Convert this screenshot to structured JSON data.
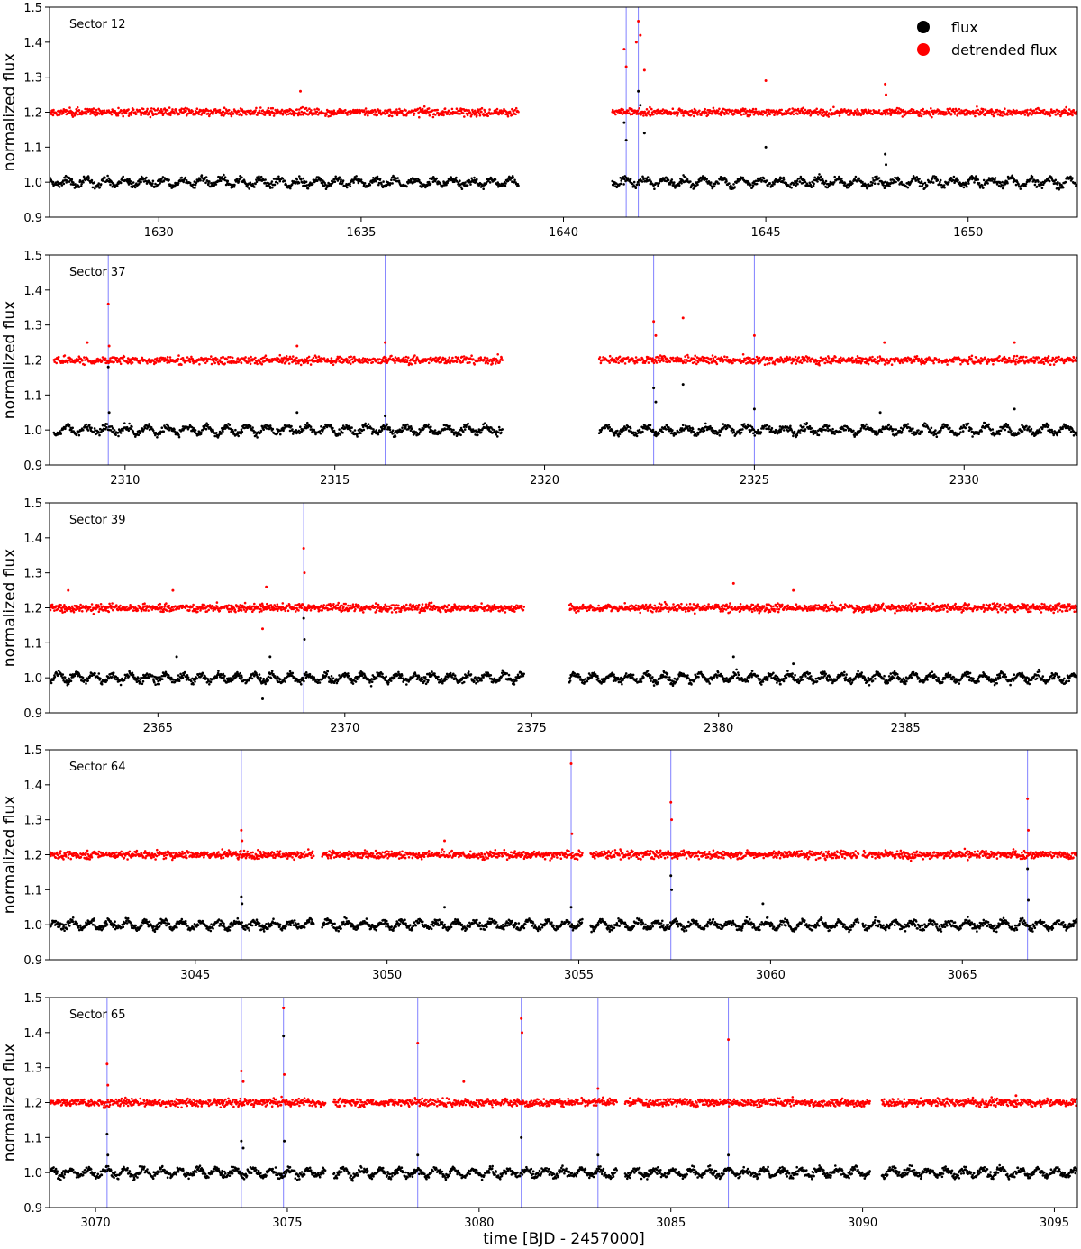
{
  "figure": {
    "xlabel": "time [BJD - 2457000]",
    "ylabel": "normalized flux",
    "legend": {
      "placement": "top-right",
      "entries": [
        {
          "label": "flux",
          "color": "#000000"
        },
        {
          "label": "detrended flux",
          "color": "#ff0000"
        }
      ]
    },
    "colors": {
      "flux": "#000000",
      "detrended": "#ff0000",
      "flare_line": "#8080ff"
    }
  },
  "chart_data": [
    {
      "type": "scatter",
      "label": "Sector 12",
      "xlim": [
        1627.3,
        1652.7
      ],
      "ylim": [
        0.9,
        1.5
      ],
      "xticks": [
        1630,
        1635,
        1640,
        1645,
        1650
      ],
      "yticks": [
        "0.9",
        "1.0",
        "1.1",
        "1.2",
        "1.3",
        "1.4",
        "1.5"
      ],
      "segments": [
        [
          1627.3,
          1638.9
        ],
        [
          1641.2,
          1652.7
        ]
      ],
      "flare_lines": [
        1641.55,
        1641.85
      ],
      "outliers_flux": [
        [
          1641.5,
          1.17
        ],
        [
          1641.55,
          1.12
        ],
        [
          1641.85,
          1.26
        ],
        [
          1641.9,
          1.22
        ],
        [
          1642.0,
          1.14
        ],
        [
          1645.0,
          1.1
        ],
        [
          1647.95,
          1.08
        ],
        [
          1647.97,
          1.05
        ]
      ],
      "outliers_detrended": [
        [
          1641.5,
          1.38
        ],
        [
          1641.55,
          1.33
        ],
        [
          1641.8,
          1.4
        ],
        [
          1641.85,
          1.46
        ],
        [
          1641.9,
          1.42
        ],
        [
          1642.0,
          1.32
        ],
        [
          1633.5,
          1.26
        ],
        [
          1645.0,
          1.29
        ],
        [
          1647.95,
          1.28
        ],
        [
          1647.97,
          1.25
        ]
      ]
    },
    {
      "type": "scatter",
      "label": "Sector 37",
      "xlim": [
        2308.2,
        2332.7
      ],
      "ylim": [
        0.9,
        1.5
      ],
      "xticks": [
        2310,
        2315,
        2320,
        2325,
        2330
      ],
      "yticks": [
        "0.9",
        "1.0",
        "1.1",
        "1.2",
        "1.3",
        "1.4",
        "1.5"
      ],
      "segments": [
        [
          2308.3,
          2319.0
        ],
        [
          2321.3,
          2332.7
        ]
      ],
      "flare_lines": [
        2309.6,
        2316.2,
        2322.6,
        2325.0
      ],
      "outliers_flux": [
        [
          2309.6,
          1.18
        ],
        [
          2309.62,
          1.05
        ],
        [
          2314.1,
          1.05
        ],
        [
          2316.2,
          1.04
        ],
        [
          2322.6,
          1.12
        ],
        [
          2322.65,
          1.08
        ],
        [
          2323.3,
          1.13
        ],
        [
          2325.0,
          1.06
        ],
        [
          2328.0,
          1.05
        ],
        [
          2331.2,
          1.06
        ]
      ],
      "outliers_detrended": [
        [
          2309.6,
          1.36
        ],
        [
          2309.62,
          1.24
        ],
        [
          2309.1,
          1.25
        ],
        [
          2314.1,
          1.24
        ],
        [
          2316.2,
          1.25
        ],
        [
          2322.6,
          1.31
        ],
        [
          2322.65,
          1.27
        ],
        [
          2323.3,
          1.32
        ],
        [
          2325.0,
          1.27
        ],
        [
          2328.1,
          1.25
        ],
        [
          2331.2,
          1.25
        ]
      ]
    },
    {
      "type": "scatter",
      "label": "Sector 39",
      "xlim": [
        2362.1,
        2389.6
      ],
      "ylim": [
        0.9,
        1.5
      ],
      "xticks": [
        2365,
        2370,
        2375,
        2380,
        2385
      ],
      "yticks": [
        "0.9",
        "1.0",
        "1.1",
        "1.2",
        "1.3",
        "1.4",
        "1.5"
      ],
      "segments": [
        [
          2362.1,
          2374.8
        ],
        [
          2376.0,
          2389.6
        ]
      ],
      "flare_lines": [
        2368.9
      ],
      "outliers_flux": [
        [
          2368.9,
          1.17
        ],
        [
          2368.92,
          1.11
        ],
        [
          2367.8,
          0.94
        ],
        [
          2368.0,
          1.06
        ],
        [
          2365.5,
          1.06
        ],
        [
          2380.4,
          1.06
        ],
        [
          2382.0,
          1.04
        ]
      ],
      "outliers_detrended": [
        [
          2368.9,
          1.37
        ],
        [
          2368.92,
          1.3
        ],
        [
          2367.9,
          1.26
        ],
        [
          2367.8,
          1.14
        ],
        [
          2365.4,
          1.25
        ],
        [
          2362.6,
          1.25
        ],
        [
          2380.4,
          1.27
        ],
        [
          2382.0,
          1.25
        ]
      ]
    },
    {
      "type": "scatter",
      "label": "Sector 64",
      "xlim": [
        3041.2,
        3068.0
      ],
      "ylim": [
        0.9,
        1.5
      ],
      "xticks": [
        3045,
        3050,
        3055,
        3060,
        3065
      ],
      "yticks": [
        "0.9",
        "1.0",
        "1.1",
        "1.2",
        "1.3",
        "1.4",
        "1.5"
      ],
      "segments": [
        [
          3041.2,
          3048.1
        ],
        [
          3048.3,
          3055.1
        ],
        [
          3055.3,
          3062.3
        ],
        [
          3062.4,
          3068.0
        ]
      ],
      "flare_lines": [
        3046.2,
        3054.8,
        3057.4,
        3066.7
      ],
      "outliers_flux": [
        [
          3046.2,
          1.08
        ],
        [
          3046.22,
          1.06
        ],
        [
          3054.8,
          1.05
        ],
        [
          3057.4,
          1.14
        ],
        [
          3057.42,
          1.1
        ],
        [
          3066.7,
          1.16
        ],
        [
          3066.72,
          1.07
        ],
        [
          3051.5,
          1.05
        ],
        [
          3059.8,
          1.06
        ]
      ],
      "outliers_detrended": [
        [
          3046.2,
          1.27
        ],
        [
          3046.22,
          1.24
        ],
        [
          3054.8,
          1.46
        ],
        [
          3054.82,
          1.26
        ],
        [
          3057.4,
          1.35
        ],
        [
          3057.42,
          1.3
        ],
        [
          3066.7,
          1.36
        ],
        [
          3066.72,
          1.27
        ],
        [
          3051.5,
          1.24
        ]
      ]
    },
    {
      "type": "scatter",
      "label": "Sector 65",
      "xlim": [
        3068.8,
        3095.6
      ],
      "ylim": [
        0.9,
        1.5
      ],
      "xticks": [
        3070,
        3075,
        3080,
        3085,
        3090,
        3095
      ],
      "yticks": [
        "0.9",
        "1.0",
        "1.1",
        "1.2",
        "1.3",
        "1.4",
        "1.5"
      ],
      "segments": [
        [
          3068.8,
          3076.0
        ],
        [
          3076.2,
          3083.6
        ],
        [
          3083.8,
          3090.2
        ],
        [
          3090.5,
          3095.6
        ]
      ],
      "flare_lines": [
        3070.3,
        3073.8,
        3074.9,
        3078.4,
        3081.1,
        3083.1,
        3086.5
      ],
      "outliers_flux": [
        [
          3070.3,
          1.11
        ],
        [
          3070.32,
          1.05
        ],
        [
          3073.8,
          1.09
        ],
        [
          3073.85,
          1.07
        ],
        [
          3074.9,
          1.39
        ],
        [
          3074.92,
          1.09
        ],
        [
          3078.4,
          1.05
        ],
        [
          3081.1,
          1.1
        ],
        [
          3083.1,
          1.05
        ],
        [
          3086.5,
          1.05
        ]
      ],
      "outliers_detrended": [
        [
          3070.3,
          1.31
        ],
        [
          3070.32,
          1.25
        ],
        [
          3073.8,
          1.29
        ],
        [
          3073.85,
          1.26
        ],
        [
          3074.9,
          1.47
        ],
        [
          3074.92,
          1.28
        ],
        [
          3078.4,
          1.37
        ],
        [
          3079.6,
          1.26
        ],
        [
          3081.1,
          1.44
        ],
        [
          3081.12,
          1.4
        ],
        [
          3083.1,
          1.24
        ],
        [
          3086.5,
          1.38
        ],
        [
          3094.0,
          1.22
        ]
      ]
    }
  ]
}
